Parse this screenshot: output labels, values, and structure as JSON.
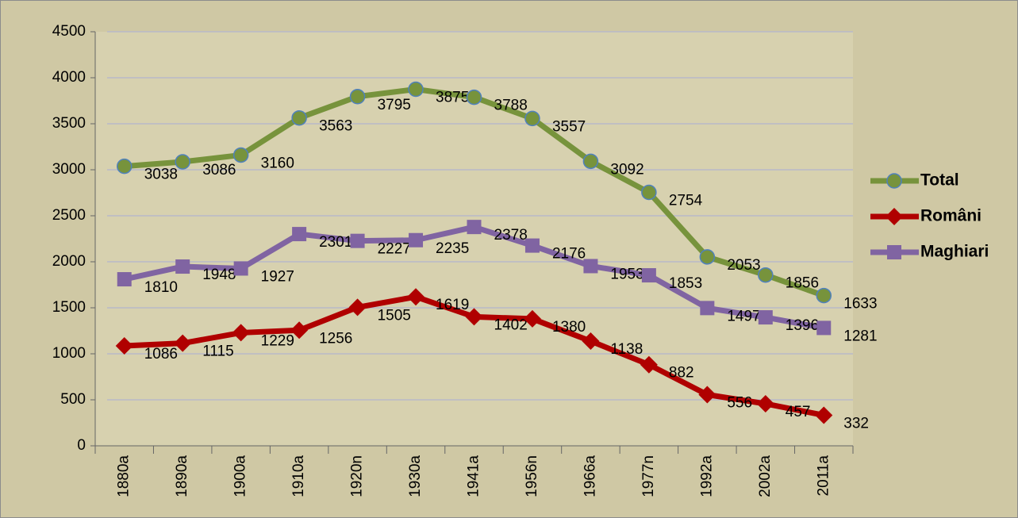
{
  "chart_data": {
    "type": "line",
    "categories": [
      "1880a",
      "1890a",
      "1900a",
      "1910a",
      "1920n",
      "1930a",
      "1941a",
      "1956n",
      "1966a",
      "1977n",
      "1992a",
      "2002a",
      "2011a"
    ],
    "series": [
      {
        "name": "Total",
        "color": "#77933c",
        "marker": "circle",
        "values": [
          3038,
          3086,
          3160,
          3563,
          3795,
          3875,
          3788,
          3557,
          3092,
          2754,
          2053,
          1856,
          1633
        ]
      },
      {
        "name": "Români",
        "color": "#b00000",
        "marker": "diamond",
        "values": [
          1086,
          1115,
          1229,
          1256,
          1505,
          1619,
          1402,
          1380,
          1138,
          882,
          556,
          457,
          332
        ]
      },
      {
        "name": "Maghiari",
        "color": "#8064a2",
        "marker": "square",
        "values": [
          1810,
          1948,
          1927,
          2301,
          2227,
          2235,
          2378,
          2176,
          1953,
          1853,
          1497,
          1396,
          1281
        ]
      }
    ],
    "ylim": [
      0,
      4500
    ],
    "yticks": [
      0,
      500,
      1000,
      1500,
      2000,
      2500,
      3000,
      3500,
      4000,
      4500
    ],
    "grid": true,
    "legend": "right"
  }
}
